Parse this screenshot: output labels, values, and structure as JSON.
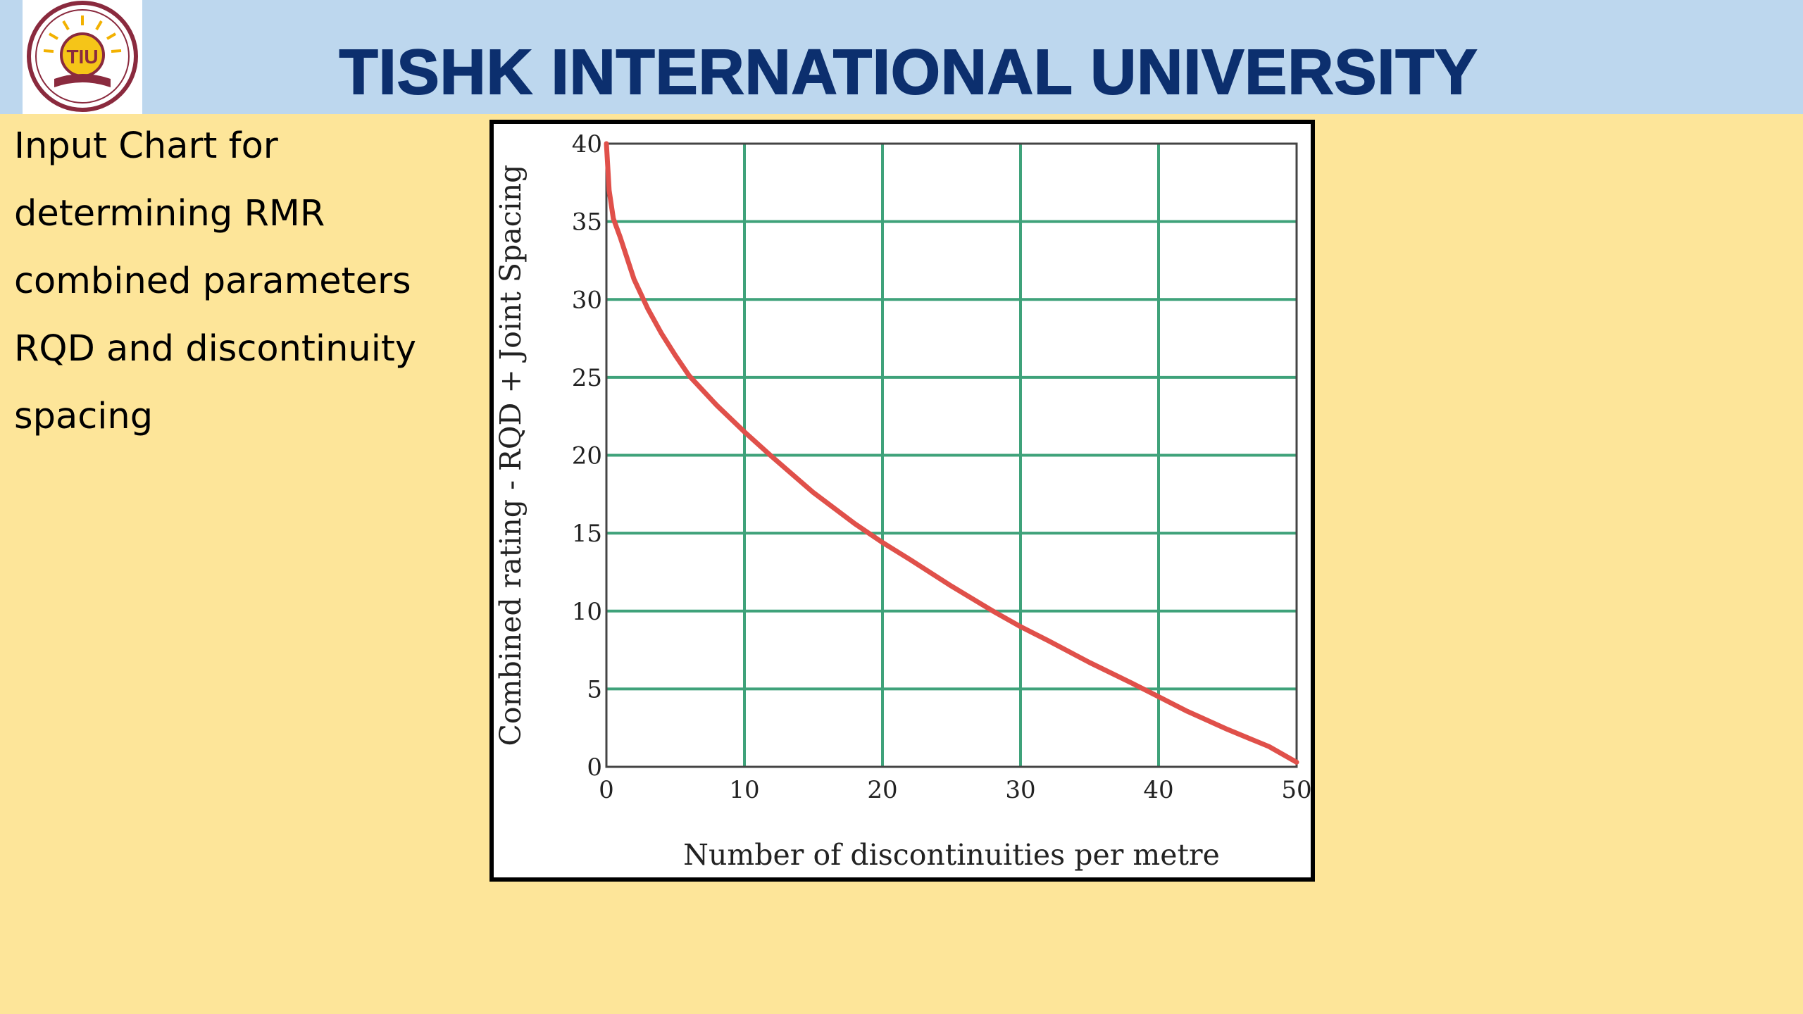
{
  "header": {
    "title": "TISHK INTERNATIONAL UNIVERSITY",
    "logo_text": "TIU"
  },
  "side_text": {
    "lines": [
      "Input Chart for",
      "determining RMR",
      "combined parameters",
      "RQD and discontinuity",
      "spacing"
    ]
  },
  "chart_data": {
    "type": "line",
    "title": "",
    "xlabel": "Number of discontinuities per metre",
    "ylabel": "Combined rating - RQD + Joint Spacing",
    "xlim": [
      0,
      50
    ],
    "ylim": [
      0,
      40
    ],
    "x_ticks": [
      "0",
      "10",
      "20",
      "30",
      "40",
      "50"
    ],
    "y_ticks": [
      "0",
      "5",
      "10",
      "15",
      "20",
      "25",
      "30",
      "35",
      "40"
    ],
    "grid": true,
    "line_color": "#e0504a",
    "grid_color": "#3fa27a",
    "series": [
      {
        "x": [
          0,
          0.2,
          0.5,
          1,
          2,
          3,
          4,
          5,
          6,
          8,
          10,
          12,
          15,
          18,
          20,
          22,
          25,
          28,
          30,
          32,
          35,
          38,
          40,
          42,
          45,
          48,
          50
        ],
        "values": [
          40,
          37,
          35.2,
          34,
          31.3,
          29.4,
          27.8,
          26.4,
          25.1,
          23.2,
          21.5,
          19.9,
          17.6,
          15.6,
          14.4,
          13.3,
          11.6,
          10,
          9,
          8.1,
          6.7,
          5.4,
          4.5,
          3.6,
          2.4,
          1.3,
          0.3
        ]
      }
    ]
  }
}
